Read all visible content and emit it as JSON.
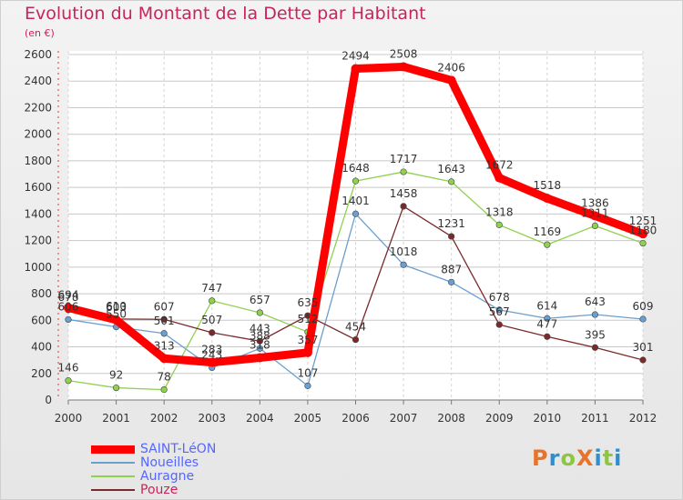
{
  "header": {
    "title": "Evolution du Montant de la Dette par Habitant",
    "subtitle": "(en €)"
  },
  "logo": {
    "text": "ProXiti",
    "colors": [
      "#e8732b",
      "#2e8fd0",
      "#8dc63f",
      "#e8732b",
      "#2e8fd0",
      "#8dc63f",
      "#2e8fd0"
    ]
  },
  "chart_data": {
    "type": "line",
    "x": [
      "2000",
      "2001",
      "2002",
      "2003",
      "2004",
      "2005",
      "2006",
      "2007",
      "2008",
      "2009",
      "2010",
      "2011",
      "2012"
    ],
    "ylim": [
      0,
      2600
    ],
    "yticks": [
      0,
      200,
      400,
      600,
      800,
      1000,
      1200,
      1400,
      1600,
      1800,
      2000,
      2200,
      2400,
      2600
    ],
    "grid": true,
    "legend_position": "bottom-left",
    "series": [
      {
        "name": "SAINT-LéON",
        "color": "#ff0000",
        "values": [
          694,
          603,
          313,
          283,
          318,
          357,
          2494,
          2508,
          2406,
          1672,
          1518,
          1386,
          1251
        ]
      },
      {
        "name": "Noueilles",
        "color": "#6a9fd0",
        "values": [
          606,
          550,
          501,
          243,
          388,
          107,
          1401,
          1018,
          887,
          678,
          614,
          643,
          609
        ]
      },
      {
        "name": "Auragne",
        "color": "#8fd14f",
        "values": [
          146,
          92,
          78,
          747,
          657,
          512,
          1648,
          1717,
          1643,
          1318,
          1169,
          1311,
          1180
        ]
      },
      {
        "name": "Pouze",
        "color": "#7a2a2a",
        "values": [
          678,
          610,
          607,
          507,
          443,
          635,
          454,
          1458,
          1231,
          567,
          477,
          395,
          301
        ]
      }
    ]
  }
}
